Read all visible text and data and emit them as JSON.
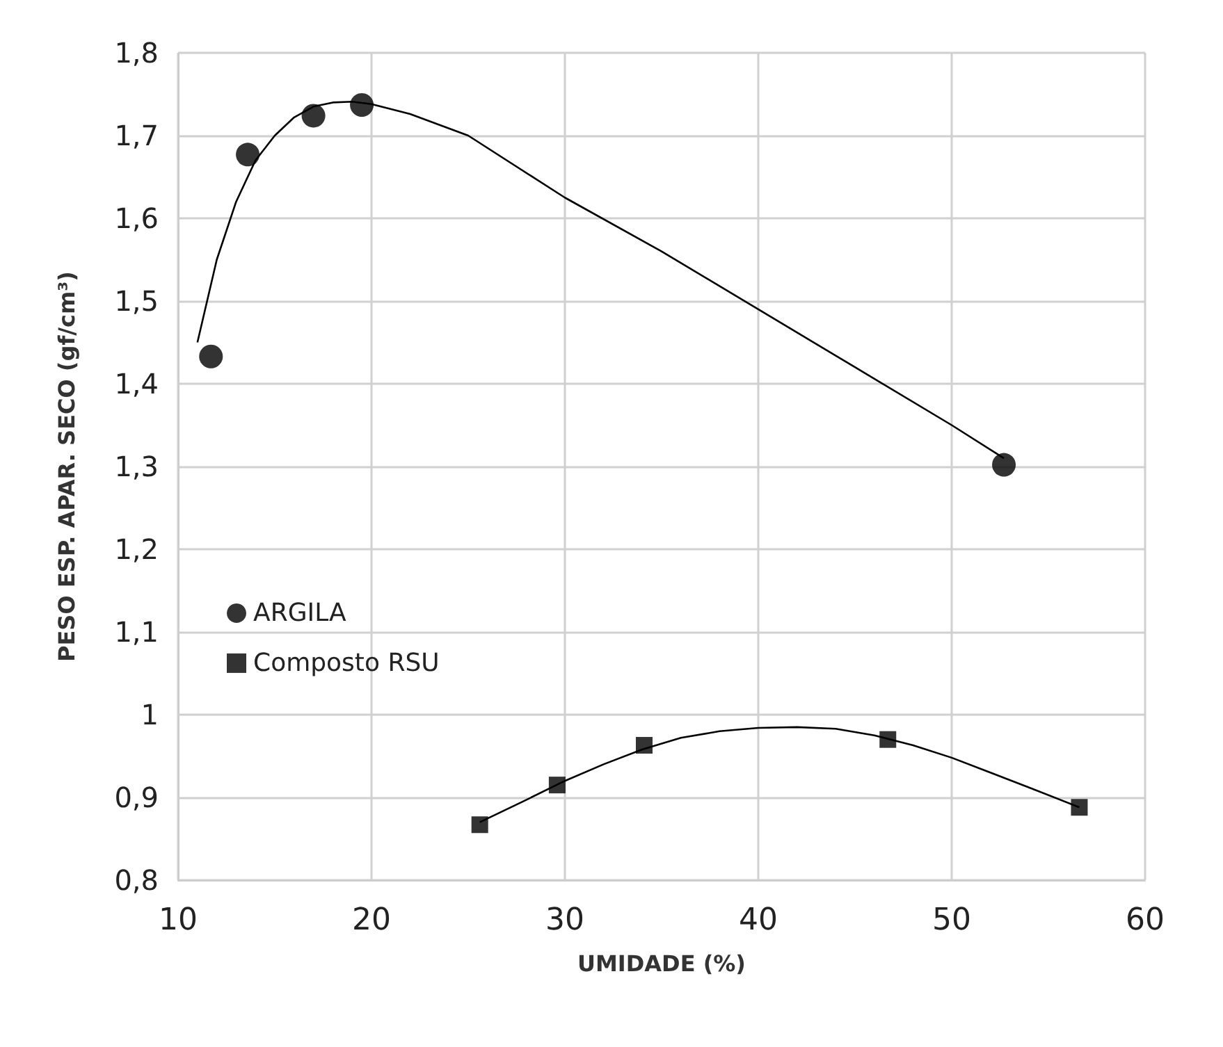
{
  "chart_data": {
    "type": "scatter",
    "xlabel": "UMIDADE (%)",
    "ylabel": "PESO ESP. APAR. SECO (gf/cm³)",
    "xlim": [
      10,
      60
    ],
    "xticks": [
      10,
      20,
      30,
      40,
      50,
      60
    ],
    "ylim": [
      0.8,
      1.8
    ],
    "yticks": [
      {
        "value": 0.8,
        "label": "0,8"
      },
      {
        "value": 0.9,
        "label": "0,9"
      },
      1,
      {
        "value": 1.1,
        "label": "1,1"
      },
      {
        "value": 1.2,
        "label": "1,2"
      },
      {
        "value": 1.3,
        "label": "1,3"
      },
      {
        "value": 1.4,
        "label": "1,4"
      },
      {
        "value": 1.5,
        "label": "1,5"
      },
      {
        "value": 1.6,
        "label": "1,6"
      },
      {
        "value": 1.7,
        "label": "1,7"
      },
      {
        "value": 1.8,
        "label": "1,8"
      }
    ],
    "grid": true,
    "legend": "left",
    "series": [
      {
        "name": "ARGILA",
        "marker": "circle",
        "color": "#000000",
        "x": [
          11.7,
          13.6,
          17.0,
          19.5,
          52.7
        ],
        "values": [
          1.433,
          1.677,
          1.724,
          1.737,
          1.302
        ]
      },
      {
        "name": "Composto RSU",
        "marker": "square",
        "color": "#000000",
        "x": [
          25.6,
          29.6,
          34.1,
          46.7,
          56.6
        ],
        "values": [
          0.867,
          0.915,
          0.963,
          0.97,
          0.888
        ]
      },
      {
        "type": "line",
        "marker": "none",
        "color": "#000000",
        "x": [
          11,
          12,
          13,
          14,
          15,
          16,
          17,
          18,
          19,
          20,
          22,
          25,
          30,
          35,
          40,
          45,
          50,
          52.7
        ],
        "values": [
          1.45,
          1.55,
          1.62,
          1.67,
          1.7,
          1.722,
          1.735,
          1.74,
          1.741,
          1.738,
          1.726,
          1.7,
          1.625,
          1.56,
          1.49,
          1.42,
          1.35,
          1.31
        ]
      },
      {
        "type": "line",
        "marker": "none",
        "color": "#000000",
        "x": [
          25.6,
          28,
          30,
          32,
          34,
          36,
          38,
          40,
          42,
          44,
          46,
          48,
          50,
          52,
          54,
          56.6
        ],
        "values": [
          0.87,
          0.897,
          0.92,
          0.94,
          0.958,
          0.972,
          0.98,
          0.984,
          0.985,
          0.983,
          0.975,
          0.963,
          0.948,
          0.93,
          0.912,
          0.888
        ]
      }
    ]
  }
}
